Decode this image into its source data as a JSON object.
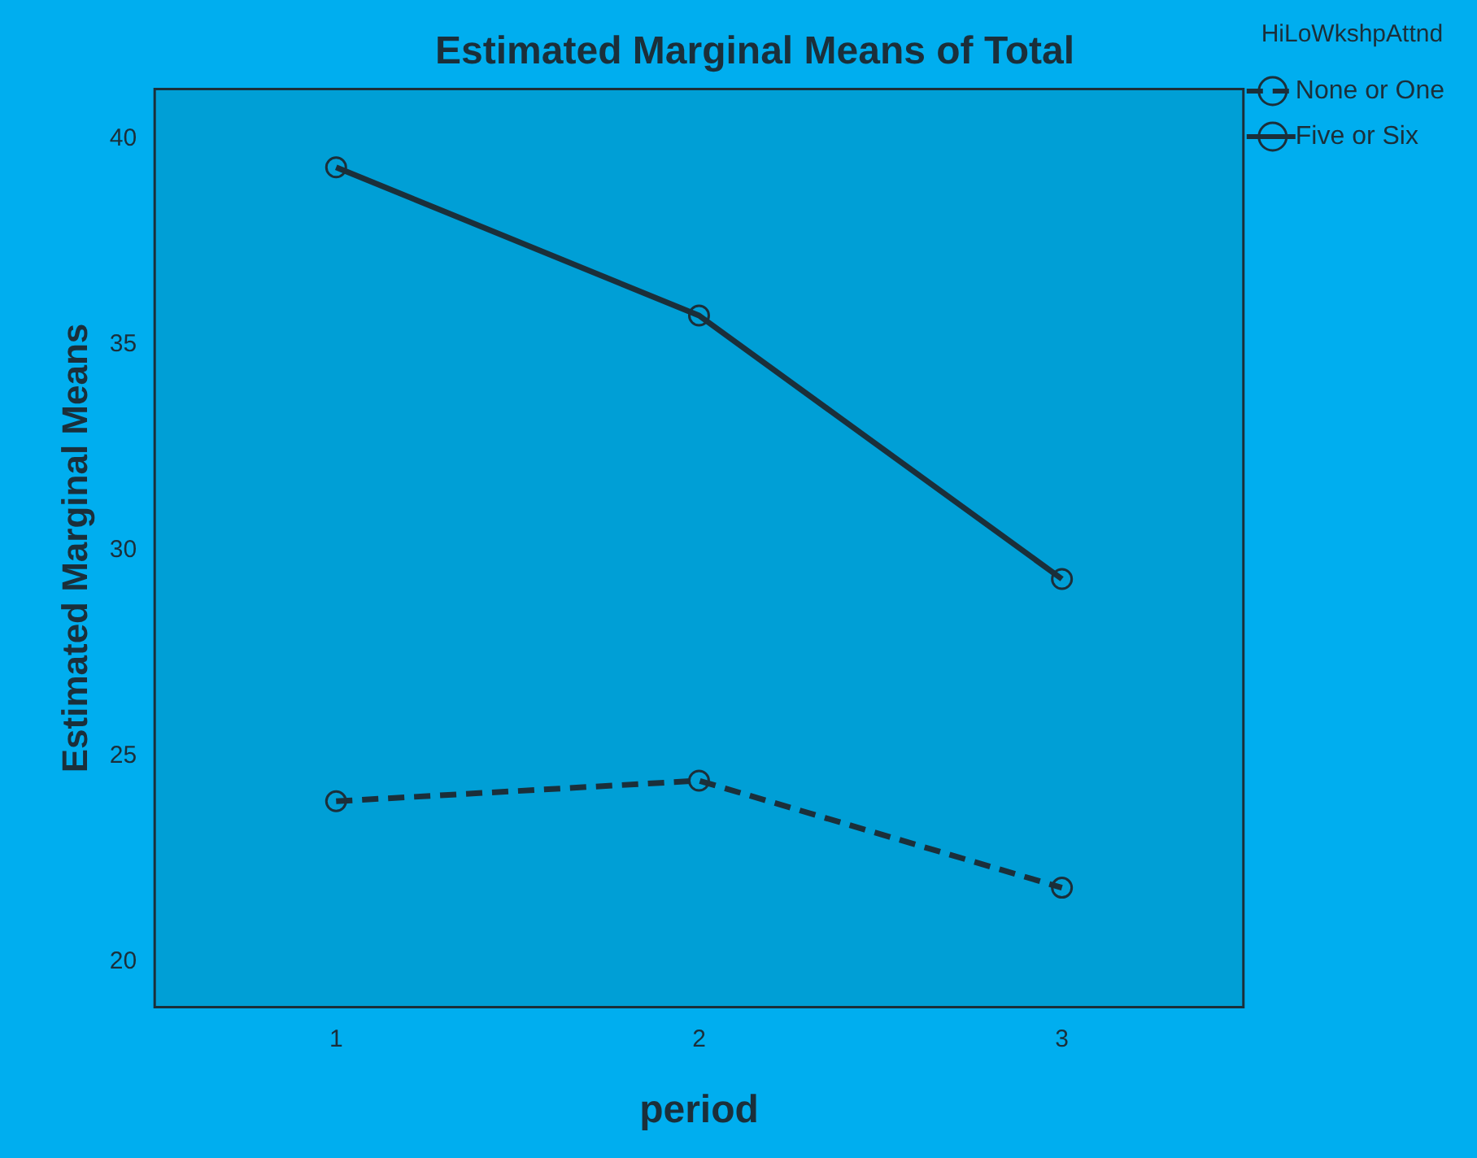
{
  "chart_data": {
    "type": "line",
    "title": "Estimated Marginal Means of Total",
    "xlabel": "period",
    "ylabel": "Estimated Marginal Means",
    "legend_title": "HiLoWkshpAttnd",
    "legend": "top right",
    "marker": "circle",
    "grid": false,
    "categories": [
      "1",
      "2",
      "3"
    ],
    "ylim": [
      18.9,
      41.2
    ],
    "yticks": [
      20,
      25,
      30,
      35,
      40
    ],
    "series": [
      {
        "name": "None or One",
        "color": "#1b2f3a",
        "line_style": "dashed",
        "values": [
          23.9,
          24.4,
          21.8
        ]
      },
      {
        "name": "Five or Six",
        "color": "#1b2f3a",
        "line_style": "solid",
        "values": [
          39.3,
          35.7,
          29.3
        ]
      }
    ]
  }
}
